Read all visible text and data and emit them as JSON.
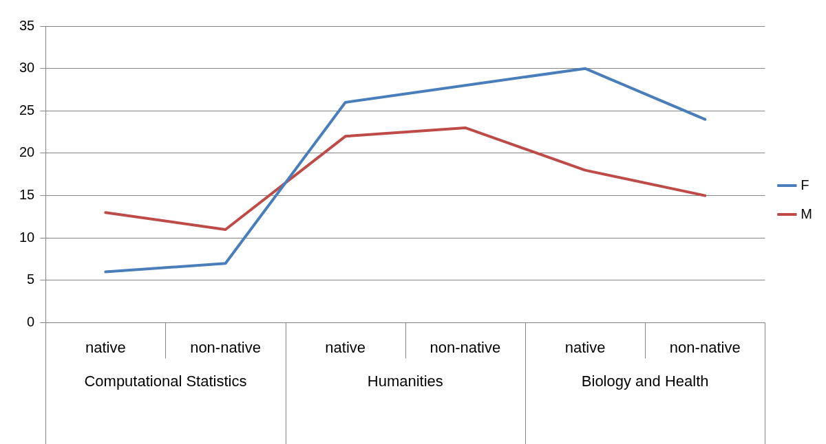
{
  "chart_data": {
    "type": "line",
    "categories": [
      "native",
      "non-native",
      "native",
      "non-native",
      "native",
      "non-native"
    ],
    "series": [
      {
        "name": "F",
        "color": "#4a7ebb",
        "values": [
          6,
          7,
          26,
          28,
          30,
          24
        ]
      },
      {
        "name": "M",
        "color": "#be4b48",
        "values": [
          13,
          11,
          22,
          23,
          18,
          15
        ]
      }
    ],
    "annotations": [
      "Computational Statistics",
      "Humanities",
      "Biology and Health"
    ],
    "ylim": [
      0,
      35
    ],
    "yticks": [
      0,
      5,
      10,
      15,
      20,
      25,
      30,
      35
    ],
    "grid": "y",
    "legend": "right",
    "marker": "none",
    "line_style": "solid"
  }
}
